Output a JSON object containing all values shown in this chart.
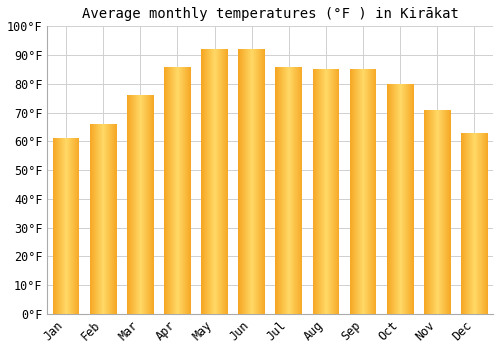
{
  "title": "Average monthly temperatures (°F ) in Kirākat",
  "months": [
    "Jan",
    "Feb",
    "Mar",
    "Apr",
    "May",
    "Jun",
    "Jul",
    "Aug",
    "Sep",
    "Oct",
    "Nov",
    "Dec"
  ],
  "values": [
    61,
    66,
    76,
    86,
    92,
    92,
    86,
    85,
    85,
    80,
    71,
    63
  ],
  "bar_color_center": "#FFD966",
  "bar_color_edge": "#F5A623",
  "background_color": "#ffffff",
  "ylim": [
    0,
    100
  ],
  "yticks": [
    0,
    10,
    20,
    30,
    40,
    50,
    60,
    70,
    80,
    90,
    100
  ],
  "ytick_labels": [
    "0°F",
    "10°F",
    "20°F",
    "30°F",
    "40°F",
    "50°F",
    "60°F",
    "70°F",
    "80°F",
    "90°F",
    "100°F"
  ],
  "grid_color": "#d0d0d0",
  "title_fontsize": 10,
  "tick_fontsize": 8.5,
  "bar_width": 0.72
}
